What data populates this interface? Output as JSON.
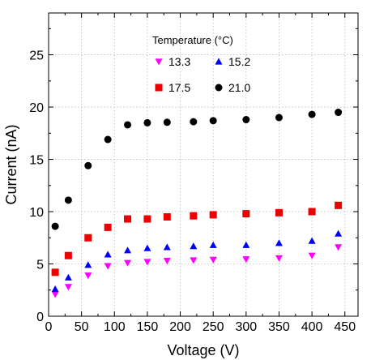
{
  "chart_data": {
    "type": "scatter",
    "xlabel": "Voltage (V)",
    "ylabel": "Current (nA)",
    "xlim": [
      0,
      470
    ],
    "ylim": [
      0,
      29
    ],
    "x_ticks": [
      0,
      50,
      100,
      150,
      200,
      250,
      300,
      350,
      400,
      450
    ],
    "y_ticks": [
      0,
      5,
      10,
      15,
      20,
      25
    ],
    "grid": "dotted",
    "legend": {
      "title": "Temperature (°C)",
      "placement": "top-center"
    },
    "x": [
      10,
      30,
      60,
      90,
      120,
      150,
      180,
      220,
      250,
      300,
      350,
      400,
      440
    ],
    "series": [
      {
        "name": "13.3",
        "marker": "triangle-down",
        "color": "#ff00ff",
        "values": [
          2.1,
          2.8,
          3.9,
          4.8,
          5.1,
          5.2,
          5.3,
          5.35,
          5.4,
          5.45,
          5.55,
          5.8,
          6.6
        ]
      },
      {
        "name": "15.2",
        "marker": "triangle-up",
        "color": "#0000ff",
        "values": [
          2.6,
          3.7,
          4.9,
          5.9,
          6.3,
          6.5,
          6.6,
          6.7,
          6.8,
          6.8,
          7.0,
          7.2,
          7.9
        ]
      },
      {
        "name": "17.5",
        "marker": "square",
        "color": "#ee0000",
        "values": [
          4.2,
          5.8,
          7.5,
          8.5,
          9.3,
          9.3,
          9.5,
          9.6,
          9.7,
          9.8,
          9.9,
          10.0,
          10.6
        ]
      },
      {
        "name": "21.0",
        "marker": "circle",
        "color": "#000000",
        "values": [
          8.6,
          11.1,
          14.4,
          16.9,
          18.3,
          18.5,
          18.55,
          18.6,
          18.7,
          18.8,
          19.0,
          19.3,
          19.5
        ]
      }
    ]
  }
}
